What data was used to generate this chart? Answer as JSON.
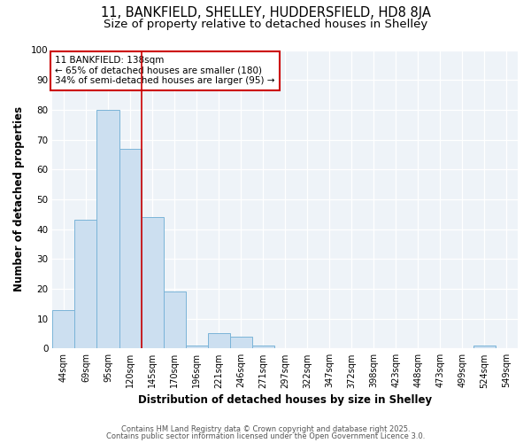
{
  "title_line1": "11, BANKFIELD, SHELLEY, HUDDERSFIELD, HD8 8JA",
  "title_line2": "Size of property relative to detached houses in Shelley",
  "xlabel": "Distribution of detached houses by size in Shelley",
  "ylabel": "Number of detached properties",
  "bar_labels": [
    "44sqm",
    "69sqm",
    "95sqm",
    "120sqm",
    "145sqm",
    "170sqm",
    "196sqm",
    "221sqm",
    "246sqm",
    "271sqm",
    "297sqm",
    "322sqm",
    "347sqm",
    "372sqm",
    "398sqm",
    "423sqm",
    "448sqm",
    "473sqm",
    "499sqm",
    "524sqm",
    "549sqm"
  ],
  "bar_values": [
    13,
    43,
    80,
    67,
    44,
    19,
    1,
    5,
    4,
    1,
    0,
    0,
    0,
    0,
    0,
    0,
    0,
    0,
    0,
    1,
    0
  ],
  "bar_color": "#ccdff0",
  "bar_edgecolor": "#7ab4d8",
  "vline_x": 3.52,
  "vline_color": "#cc0000",
  "annotation_text": "11 BANKFIELD: 138sqm\n← 65% of detached houses are smaller (180)\n34% of semi-detached houses are larger (95) →",
  "annotation_box_edgecolor": "#cc0000",
  "ylim": [
    0,
    100
  ],
  "yticks": [
    0,
    10,
    20,
    30,
    40,
    50,
    60,
    70,
    80,
    90,
    100
  ],
  "footer_line1": "Contains HM Land Registry data © Crown copyright and database right 2025.",
  "footer_line2": "Contains public sector information licensed under the Open Government Licence 3.0.",
  "bg_color": "#ffffff",
  "plot_bg_color": "#eef3f8",
  "title_fontsize": 10.5,
  "subtitle_fontsize": 9.5,
  "axis_label_fontsize": 8.5,
  "tick_fontsize": 7,
  "annotation_fontsize": 7.5,
  "footer_fontsize": 6.0
}
